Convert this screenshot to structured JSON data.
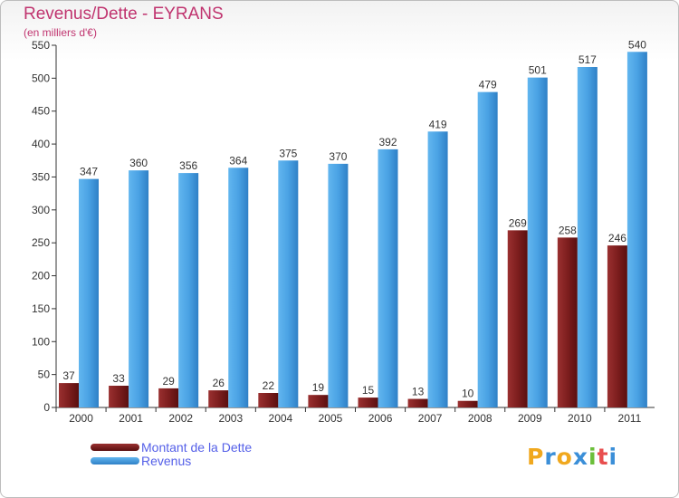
{
  "header": {
    "title": "Revenus/Dette - EYRANS",
    "subtitle": "(en milliers d'€)"
  },
  "legend": {
    "items": [
      {
        "label": "Montant de la Dette",
        "color": "#7a1a1a"
      },
      {
        "label": "Revenus",
        "color": "#4ba3e3"
      }
    ]
  },
  "logo": {
    "letters": [
      "P",
      "r",
      "o",
      "x",
      "i",
      "t",
      "i"
    ],
    "colors": [
      "#f0a81e",
      "#3b8fd8",
      "#f0a81e",
      "#3b8fd8",
      "#6bbf3a",
      "#e84e4e",
      "#3b8fd8"
    ]
  },
  "chart_data": {
    "type": "bar",
    "categories": [
      "2000",
      "2001",
      "2002",
      "2003",
      "2004",
      "2005",
      "2006",
      "2007",
      "2008",
      "2009",
      "2010",
      "2011"
    ],
    "series": [
      {
        "name": "Montant de la Dette",
        "values": [
          37,
          33,
          29,
          26,
          22,
          19,
          15,
          13,
          10,
          269,
          258,
          246
        ],
        "color": "#7a1a1a"
      },
      {
        "name": "Revenus",
        "values": [
          347,
          360,
          356,
          364,
          375,
          370,
          392,
          419,
          479,
          501,
          517,
          540
        ],
        "color": "#4ba3e3"
      }
    ],
    "yticks": [
      0,
      50,
      100,
      150,
      200,
      250,
      300,
      350,
      400,
      450,
      500,
      550
    ],
    "ylim": [
      0,
      550
    ],
    "grid": false,
    "legend_position": "bottom-left"
  }
}
